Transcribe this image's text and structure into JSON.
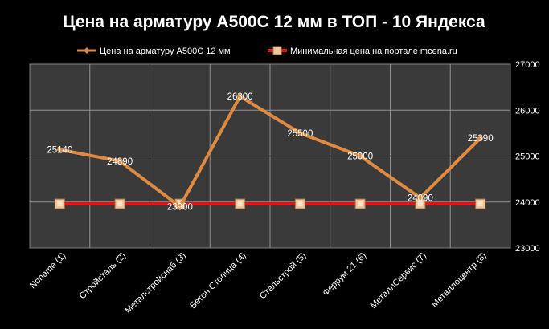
{
  "chart_data": {
    "type": "line",
    "title": "Цена на арматуру А500С 12 мм в ТОП  - 10 Яндекса",
    "categories": [
      "Noname (1)",
      "Стройсталь (2)",
      "Металстройснаб (3)",
      "Бетон Столица (4)",
      "Стальстрой (5)",
      "Феррум 21 (6)",
      "МеталлСервис (7)",
      "Металлоцентр (8)"
    ],
    "series": [
      {
        "name": "Цена на арматуру А500С 12 мм",
        "values": [
          25140,
          24890,
          23900,
          26300,
          25500,
          25000,
          24090,
          25390
        ],
        "labels": [
          "25140",
          "24890",
          "23900",
          "26300",
          "25500",
          "25000",
          "24090",
          "25390"
        ],
        "color": "#E08A40"
      },
      {
        "name": "Минимальная цена на портале mcena.ru",
        "values": [
          23960,
          23960,
          23960,
          23960,
          23960,
          23960,
          23960,
          23960
        ],
        "color": "#E81010"
      }
    ],
    "y_axis": {
      "ylim": [
        23000,
        27000
      ],
      "ticks": [
        "23000",
        "24000",
        "25000",
        "26000",
        "27000"
      ],
      "position": "right"
    },
    "grid": true,
    "legend_position": "top",
    "plot_background": "#3a3a3a",
    "grid_color": "#909090"
  }
}
